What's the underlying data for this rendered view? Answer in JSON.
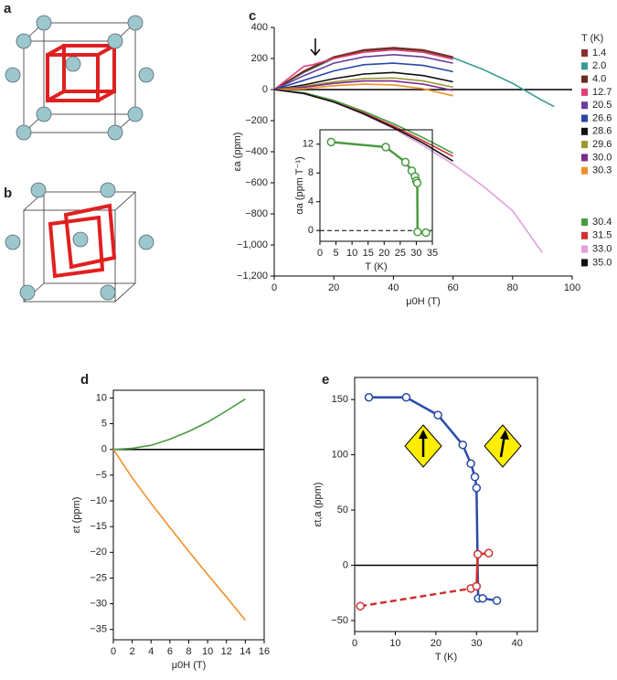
{
  "structure_panels": [
    "a",
    "b"
  ],
  "chart_data": [
    {
      "type": "line",
      "panel": "c",
      "xlabel": "μ0H (T)",
      "ylabel": "εa (ppm)",
      "legend_title": "T (K)",
      "xlim": [
        0,
        100
      ],
      "ylim": [
        -1200,
        400
      ],
      "xticks": [
        0,
        20,
        40,
        60,
        80,
        100
      ],
      "yticks": [
        400,
        200,
        0,
        {
          "value": -200,
          "label": "−200"
        },
        {
          "value": -400,
          "label": "−400"
        },
        {
          "value": -600,
          "label": "−600"
        },
        {
          "value": -800,
          "label": "−800"
        },
        {
          "value": -1000,
          "label": "−1,000"
        },
        {
          "value": -1200,
          "label": "−1,200"
        }
      ],
      "zero_line": true,
      "frame": false,
      "series": [
        {
          "name": "1.4",
          "color": "#8c2d2d",
          "x": [
            0,
            10,
            20,
            30,
            40,
            50,
            60
          ],
          "values": [
            0,
            120,
            210,
            255,
            270,
            255,
            210
          ]
        },
        {
          "name": "2.0",
          "color": "#3a9a95",
          "x": [
            0,
            10,
            20,
            30,
            40,
            50,
            60,
            70,
            80,
            90,
            94
          ],
          "values": [
            0,
            110,
            200,
            250,
            265,
            250,
            205,
            130,
            40,
            -70,
            -110
          ]
        },
        {
          "name": "4.0",
          "color": "#6b2b1b",
          "x": [
            0,
            10,
            20,
            30,
            40,
            50,
            60
          ],
          "values": [
            0,
            115,
            205,
            250,
            265,
            250,
            205
          ]
        },
        {
          "name": "12.7",
          "color": "#e0407a",
          "x": [
            0,
            10,
            13,
            20,
            30,
            40,
            50,
            60
          ],
          "values": [
            0,
            150,
            160,
            200,
            240,
            255,
            240,
            195
          ]
        },
        {
          "name": "20.5",
          "color": "#6a3d9a",
          "x": [
            0,
            10,
            20,
            30,
            40,
            50,
            60
          ],
          "values": [
            0,
            90,
            170,
            210,
            225,
            210,
            170
          ]
        },
        {
          "name": "26.6",
          "color": "#2a4aa8",
          "x": [
            0,
            10,
            20,
            30,
            40,
            50,
            60
          ],
          "values": [
            0,
            60,
            120,
            160,
            170,
            155,
            115
          ]
        },
        {
          "name": "28.6",
          "color": "#111111",
          "x": [
            0,
            10,
            20,
            30,
            40,
            50,
            60
          ],
          "values": [
            0,
            30,
            70,
            100,
            110,
            90,
            50
          ]
        },
        {
          "name": "29.6",
          "color": "#9a9a30",
          "x": [
            0,
            10,
            20,
            30,
            40,
            50,
            60
          ],
          "values": [
            0,
            20,
            50,
            70,
            75,
            55,
            15
          ]
        },
        {
          "name": "30.0",
          "color": "#7b2d8b",
          "x": [
            0,
            10,
            20,
            30,
            40,
            50,
            60
          ],
          "values": [
            0,
            15,
            40,
            55,
            55,
            35,
            -5
          ]
        },
        {
          "name": "30.3",
          "color": "#f0902a",
          "x": [
            0,
            10,
            20,
            30,
            40,
            50,
            60
          ],
          "values": [
            0,
            5,
            25,
            35,
            30,
            5,
            -40
          ]
        },
        {
          "name": "30.4",
          "color": "#4a9a40",
          "x": [
            0,
            10,
            20,
            30,
            40,
            50,
            60
          ],
          "values": [
            0,
            -20,
            -70,
            -140,
            -220,
            -310,
            -410
          ]
        },
        {
          "name": "31.5",
          "color": "#d03030",
          "x": [
            0,
            10,
            20,
            30,
            40,
            50,
            60
          ],
          "values": [
            0,
            -25,
            -80,
            -150,
            -235,
            -330,
            -430
          ]
        },
        {
          "name": "33.0",
          "color": "#e0a0e0",
          "x": [
            0,
            10,
            20,
            30,
            40,
            50,
            60,
            70,
            80,
            90
          ],
          "values": [
            0,
            -25,
            -80,
            -160,
            -250,
            -360,
            -480,
            -620,
            -780,
            -1050
          ]
        },
        {
          "name": "35.0",
          "color": "#111111",
          "x": [
            0,
            10,
            20,
            30,
            40,
            50,
            60
          ],
          "values": [
            0,
            -25,
            -80,
            -155,
            -245,
            -345,
            -460
          ]
        }
      ]
    },
    {
      "type": "line",
      "xlabel": "T (K)",
      "ylabel": "αa (ppm T⁻¹)",
      "xlim": [
        0,
        35
      ],
      "ylim": [
        -1.5,
        14
      ],
      "xticks": [
        0,
        5,
        10,
        15,
        20,
        25,
        30,
        35
      ],
      "yticks": [
        0,
        4,
        8,
        12
      ],
      "frame": true,
      "markers": true,
      "dashed_zero": true,
      "series": [
        {
          "color": "#4a9a40",
          "x": [
            3.5,
            20.5,
            26.6,
            28.6,
            29.6,
            30.0,
            30.3,
            30.4,
            33.0
          ],
          "values": [
            12.3,
            11.6,
            9.5,
            8.3,
            7.5,
            6.9,
            6.6,
            -0.2,
            -0.3
          ]
        }
      ]
    },
    {
      "type": "line",
      "panel": "d",
      "xlabel": "μ0H (T)",
      "ylabel": "εt (ppm)",
      "xlim": [
        0,
        16
      ],
      "ylim": [
        -37,
        11.5
      ],
      "xticks": [
        0,
        2,
        4,
        6,
        8,
        10,
        12,
        14,
        16
      ],
      "yticks": [
        10,
        5,
        0,
        {
          "value": -5,
          "label": "−5"
        },
        {
          "value": -10,
          "label": "−10"
        },
        {
          "value": -15,
          "label": "−15"
        },
        {
          "value": -20,
          "label": "−20"
        },
        {
          "value": -25,
          "label": "−25"
        },
        {
          "value": -30,
          "label": "−30"
        },
        {
          "value": -35,
          "label": "−35"
        }
      ],
      "zero_line": true,
      "frame": true,
      "series": [
        {
          "color": "#4a9a40",
          "x": [
            0,
            2,
            4,
            6,
            8,
            10,
            12,
            14
          ],
          "values": [
            0,
            0.2,
            0.8,
            2,
            3.5,
            5.3,
            7.5,
            9.8
          ]
        },
        {
          "color": "#f0902a",
          "x": [
            0,
            2,
            4,
            6,
            8,
            10,
            12,
            14
          ],
          "values": [
            0,
            -5.5,
            -10.5,
            -15.2,
            -19.8,
            -24.3,
            -28.7,
            -33.2
          ]
        }
      ]
    },
    {
      "type": "line",
      "panel": "e",
      "xlabel": "T (K)",
      "ylabel": "εt,a (ppm)",
      "xlim": [
        0,
        45
      ],
      "ylim": [
        -60,
        170
      ],
      "xticks": [
        0,
        10,
        20,
        30,
        40
      ],
      "yticks": [
        150,
        100,
        50,
        0,
        {
          "value": -50,
          "label": "−50"
        }
      ],
      "zero_line": true,
      "frame": true,
      "markers": true,
      "series": [
        {
          "color": "#2a4aa8",
          "x": [
            3.5,
            12.7,
            20.5,
            26.6,
            28.6,
            29.6,
            30.0,
            30.4,
            31.5,
            35.0
          ],
          "values": [
            152,
            152,
            136,
            109,
            92,
            80,
            70,
            -30,
            -30,
            -32
          ]
        },
        {
          "color": "#d03030",
          "x": [
            1.4,
            28.6,
            30.0,
            30.3,
            33.0
          ],
          "values": [
            -37,
            -21,
            -19,
            10,
            11
          ],
          "dashed_segments": [
            0
          ]
        }
      ]
    }
  ]
}
